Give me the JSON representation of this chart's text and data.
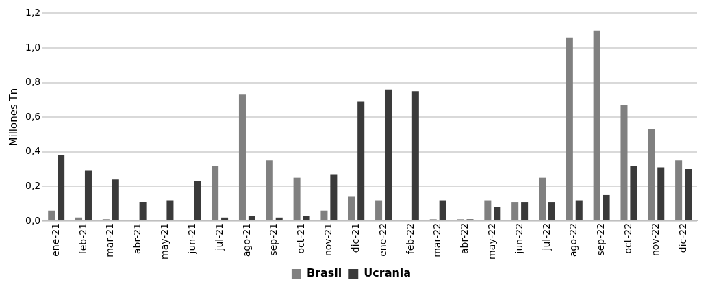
{
  "chart_data": {
    "type": "bar",
    "ylabel": "Millones Tn",
    "categories": [
      "ene-21",
      "feb-21",
      "mar-21",
      "abr-21",
      "may-21",
      "jun-21",
      "jul-21",
      "ago-21",
      "sep-21",
      "oct-21",
      "nov-21",
      "dic-21",
      "ene-22",
      "feb-22",
      "mar-22",
      "abr-22",
      "may-22",
      "jun-22",
      "jul-22",
      "ago-22",
      "sep-22",
      "oct-22",
      "nov-22",
      "dic-22"
    ],
    "series": [
      {
        "name": "Brasil",
        "color": "#808080",
        "values": [
          0.06,
          0.02,
          0.01,
          0,
          0,
          0,
          0.32,
          0.73,
          0.35,
          0.25,
          0.06,
          0.14,
          0.12,
          0,
          0.01,
          0.01,
          0.12,
          0.11,
          0.25,
          1.06,
          1.1,
          0.67,
          0.53,
          0.35
        ]
      },
      {
        "name": "Ucrania",
        "color": "#3a3a3a",
        "values": [
          0.38,
          0.29,
          0.24,
          0.11,
          0.12,
          0.23,
          0.02,
          0.03,
          0.02,
          0.03,
          0.27,
          0.69,
          0.76,
          0.75,
          0.12,
          0.01,
          0.08,
          0.11,
          0.11,
          0.12,
          0.15,
          0.32,
          0.31,
          0.3
        ]
      }
    ],
    "ylim": [
      0,
      1.2
    ],
    "yticks": [
      {
        "value": 0,
        "label": "0,0"
      },
      {
        "value": 0.2,
        "label": "0,2"
      },
      {
        "value": 0.4,
        "label": "0,4"
      },
      {
        "value": 0.6,
        "label": "0,6"
      },
      {
        "value": 0.8,
        "label": "0,8"
      },
      {
        "value": 1,
        "label": "1,0"
      },
      {
        "value": 1.2,
        "label": "1,2"
      }
    ],
    "grid": "y",
    "legend": "bottom"
  }
}
